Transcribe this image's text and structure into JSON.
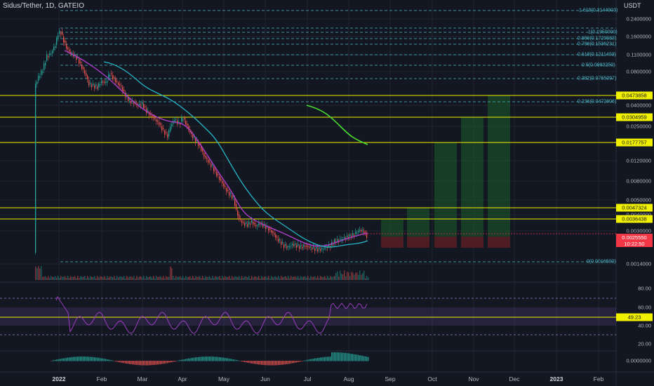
{
  "header": {
    "title": "Sidus/Tether, 1D, GATEIO",
    "currency": "USDT"
  },
  "price_axis": [
    "0.2400000",
    "0.1600000",
    "0.1100000",
    "0.0800000",
    "0.0400000",
    "0.0250000",
    "0.0120000",
    "0.0080000",
    "0.0050000",
    "0.0040000",
    "0.0030000",
    "0.0014000"
  ],
  "fib_levels": [
    {
      "label": "1.618(0.3144903)"
    },
    {
      "label": "1(0.1950000)"
    },
    {
      "label": "0.886(0.1729583)"
    },
    {
      "label": "0.786(0.1536231)"
    },
    {
      "label": "0.618(0.1211403)"
    },
    {
      "label": "0.5(0.0983250)"
    },
    {
      "label": "0.382(0.0755097)"
    },
    {
      "label": "0.236(0.0472806)"
    },
    {
      "label": "0(0.0016500)"
    }
  ],
  "key_levels": [
    "0.0473858",
    "0.0304959",
    "0.0177757",
    "0.0047324",
    "0.0036438"
  ],
  "current_price": {
    "value": "0.0025550",
    "countdown": "10:22:50"
  },
  "rsi": {
    "axis": [
      "80.00",
      "60.00",
      "40.00",
      "20.00"
    ],
    "value": "49.23"
  },
  "macd_axis": "0.0000000",
  "dates": [
    "2022",
    "Feb",
    "Mar",
    "Apr",
    "May",
    "Jun",
    "Jul",
    "Aug",
    "Sep",
    "Oct",
    "Nov",
    "Dec",
    "2023",
    "Feb"
  ],
  "colors": {
    "background": "#131722",
    "fib": "#4fb8c9",
    "key_level": "#f0f000",
    "candle_up": "#26a69a",
    "candle_down": "#ef5350",
    "ma_fast": "#b43fd0",
    "ma_slow": "#26b6c6",
    "rsi_line": "#9b3dbd",
    "target_zone": "#1e5c2a",
    "stop_zone": "#5c1f24",
    "arrow": "#4bdc2e"
  }
}
